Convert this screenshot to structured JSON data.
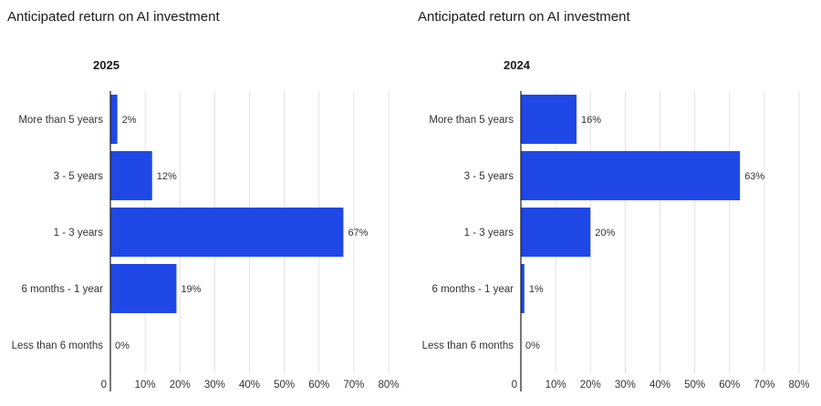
{
  "chart_data": [
    {
      "type": "bar",
      "orientation": "horizontal",
      "title": "Anticipated return on AI investment",
      "subtitle": "2025",
      "categories": [
        "More than 5 years",
        "3 - 5 years",
        "1 - 3 years",
        "6 months - 1 year",
        "Less than 6 months"
      ],
      "values": [
        2,
        12,
        67,
        19,
        0
      ],
      "value_labels": [
        "2%",
        "12%",
        "67%",
        "19%",
        "0%"
      ],
      "xlim": [
        0,
        80
      ],
      "xticks": [
        0,
        10,
        20,
        30,
        40,
        50,
        60,
        70,
        80
      ],
      "xtick_labels": [
        "0",
        "10%",
        "20%",
        "30%",
        "40%",
        "50%",
        "60%",
        "70%",
        "80%"
      ],
      "grid": true,
      "bar_color": "#1f48e6"
    },
    {
      "type": "bar",
      "orientation": "horizontal",
      "title": "Anticipated return on AI investment",
      "subtitle": "2024",
      "categories": [
        "More than 5 years",
        "3 - 5 years",
        "1 - 3 years",
        "6 months - 1 year",
        "Less than 6 months"
      ],
      "values": [
        16,
        63,
        20,
        1,
        0
      ],
      "value_labels": [
        "16%",
        "63%",
        "20%",
        "1%",
        "0%"
      ],
      "xlim": [
        0,
        80
      ],
      "xticks": [
        0,
        10,
        20,
        30,
        40,
        50,
        60,
        70,
        80
      ],
      "xtick_labels": [
        "0",
        "10%",
        "20%",
        "30%",
        "40%",
        "50%",
        "60%",
        "70%",
        "80%"
      ],
      "grid": true,
      "bar_color": "#1f48e6"
    }
  ]
}
